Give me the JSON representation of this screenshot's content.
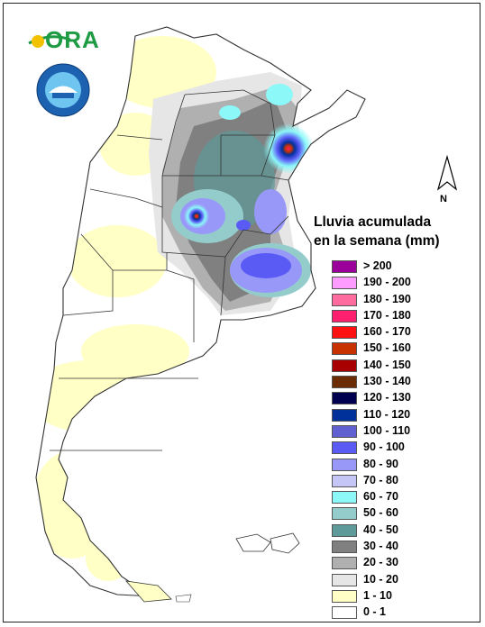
{
  "logo_text": "ORA",
  "title_line1": "Lluvia acumulada",
  "title_line2": "en la semana (mm)",
  "north_label": "N",
  "legend": [
    {
      "label": "> 200",
      "color": "#9b009b"
    },
    {
      "label": "190 - 200",
      "color": "#ff9cff"
    },
    {
      "label": "180 - 190",
      "color": "#ff6b9f"
    },
    {
      "label": "170 - 180",
      "color": "#ff1f6f"
    },
    {
      "label": "160 - 170",
      "color": "#ff1111"
    },
    {
      "label": "150 - 160",
      "color": "#c83200"
    },
    {
      "label": "140 - 150",
      "color": "#a80000"
    },
    {
      "label": "130 - 140",
      "color": "#6a2c00"
    },
    {
      "label": "120 - 130",
      "color": "#000050"
    },
    {
      "label": "110 - 120",
      "color": "#00309a"
    },
    {
      "label": "100 - 110",
      "color": "#6060d0"
    },
    {
      "label": "90 - 100",
      "color": "#5a5af5"
    },
    {
      "label": "80 - 90",
      "color": "#9898f8"
    },
    {
      "label": "70 - 80",
      "color": "#c6c6f6"
    },
    {
      "label": "60 - 70",
      "color": "#8cf8f8"
    },
    {
      "label": "50 - 60",
      "color": "#94cccc"
    },
    {
      "label": "40 - 50",
      "color": "#5e9a9a"
    },
    {
      "label": "30 - 40",
      "color": "#808080"
    },
    {
      "label": "20 - 30",
      "color": "#b0b0b0"
    },
    {
      "label": "10 - 20",
      "color": "#e6e6e6"
    },
    {
      "label": "1 - 10",
      "color": "#ffffc6"
    },
    {
      "label": "0 - 1",
      "color": "#ffffff"
    }
  ]
}
